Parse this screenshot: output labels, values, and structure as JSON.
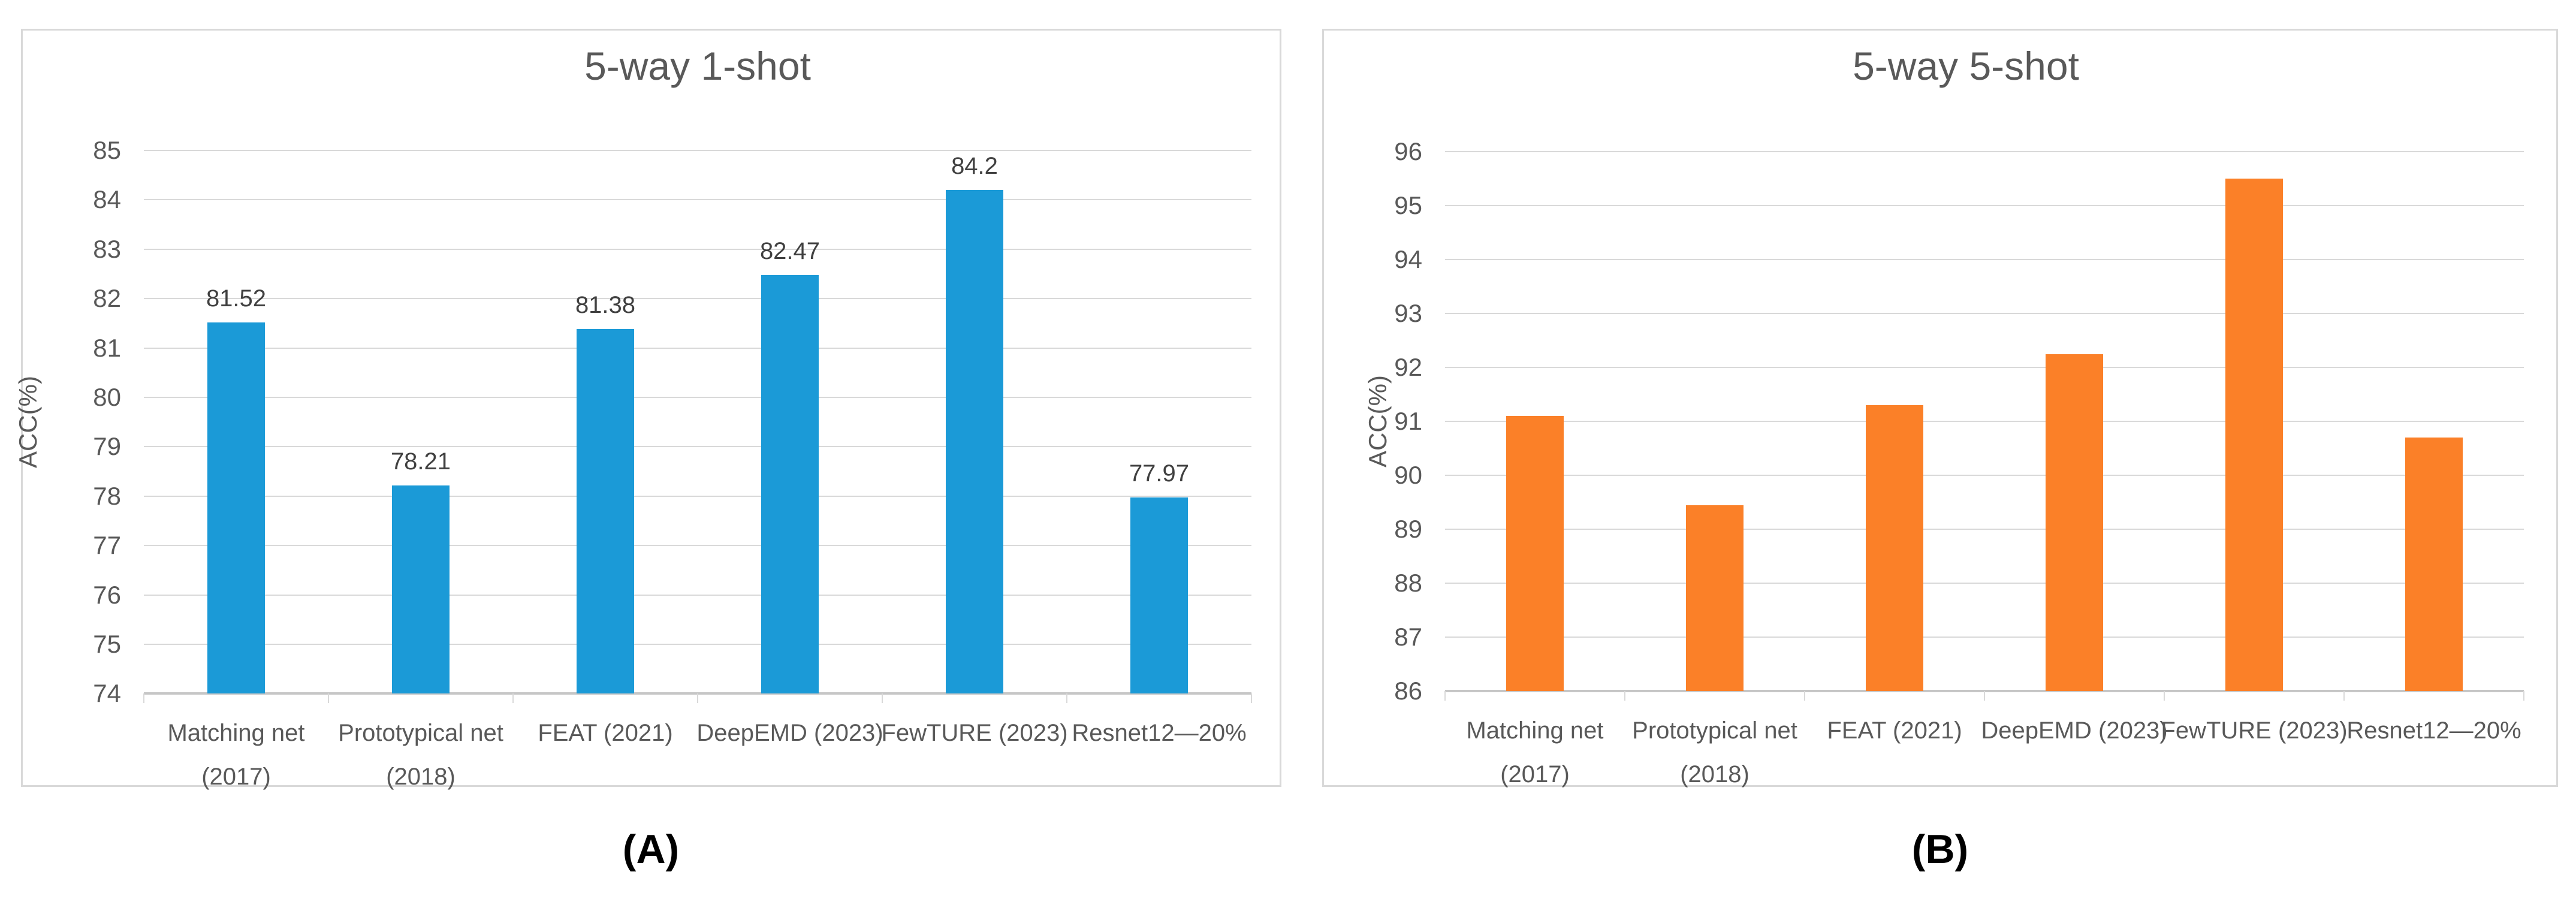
{
  "figure": {
    "background": "#ffffff",
    "panel_border_color": "#d9d9d9",
    "gridline_color": "#d9d9d9",
    "axis_line_color": "#c6c6c6",
    "title_color": "#595959",
    "tick_label_color": "#595959",
    "data_label_color": "#404040",
    "caption_color": "#000000"
  },
  "chart_data": [
    {
      "type": "bar",
      "title": "5-way 1-shot",
      "ylabel": "ACC(%)",
      "caption": "(A)",
      "bar_color": "#1b9ad7",
      "categories": [
        "Matching net\n(2017)",
        "Prototypical net\n(2018)",
        "FEAT (2021)",
        "DeepEMD (2023)",
        "FewTURE (2023)",
        "Resnet12—20%"
      ],
      "values": [
        81.52,
        78.21,
        81.38,
        82.47,
        84.2,
        77.97
      ],
      "data_labels": [
        "81.52",
        "78.21",
        "81.38",
        "82.47",
        "84.2",
        "77.97"
      ],
      "ylim": [
        74,
        85
      ],
      "ystep": 1,
      "grid": true,
      "legend": null
    },
    {
      "type": "bar",
      "title": "5-way 5-shot",
      "ylabel": "ACC(%)",
      "caption": "(B)",
      "bar_color": "#fb8028",
      "categories": [
        "Matching net\n(2017)",
        "Prototypical net\n(2018)",
        "FEAT (2021)",
        "DeepEMD (2023)",
        "FewTURE (2023)",
        "Resnet12—20%"
      ],
      "values": [
        91.1,
        89.45,
        91.3,
        92.25,
        95.5,
        90.7
      ],
      "data_labels": null,
      "ylim": [
        86,
        96
      ],
      "ystep": 1,
      "grid": true,
      "legend": null
    }
  ]
}
